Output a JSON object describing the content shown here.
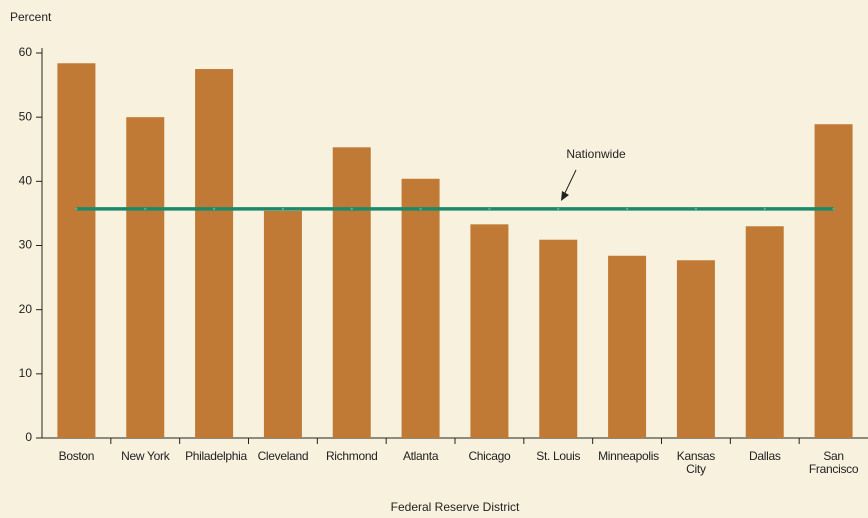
{
  "chart_data": {
    "type": "bar",
    "y_axis_label": "Percent",
    "x_axis_label": "Federal Reserve District",
    "categories": [
      "Boston",
      "New York",
      "Philadelphia",
      "Cleveland",
      "Richmond",
      "Atlanta",
      "Chicago",
      "St. Louis",
      "Minneapolis",
      "Kansas City",
      "Dallas",
      "San Francisco"
    ],
    "values": [
      58.4,
      50.0,
      57.5,
      35.4,
      45.3,
      40.4,
      33.3,
      30.9,
      28.4,
      27.7,
      33.0,
      48.9
    ],
    "color": "#c07a35",
    "reference_line": {
      "label": "Nationwide",
      "value": 35.7,
      "color": "#1b8a6b"
    },
    "ylim": [
      0,
      60
    ],
    "yticks": [
      0,
      10,
      20,
      30,
      40,
      50,
      60
    ],
    "grid": false
  }
}
